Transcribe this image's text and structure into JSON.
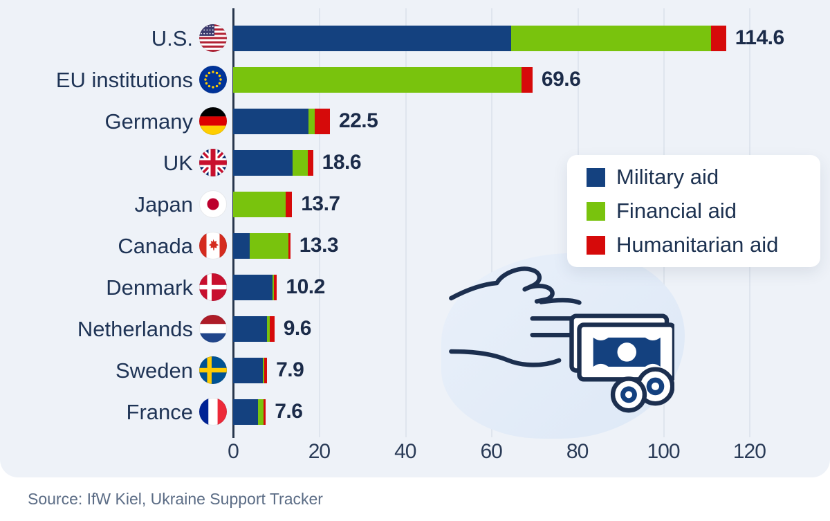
{
  "chart_data": {
    "type": "bar",
    "orientation": "horizontal",
    "stacked": true,
    "categories": [
      "U.S.",
      "EU institutions",
      "Germany",
      "UK",
      "Japan",
      "Canada",
      "Denmark",
      "Netherlands",
      "Sweden",
      "France"
    ],
    "flags": [
      "us",
      "eu",
      "de",
      "uk",
      "jp",
      "ca",
      "dk",
      "nl",
      "se",
      "fr"
    ],
    "series": [
      {
        "name": "Military aid",
        "color": "#14417f",
        "values": [
          64.6,
          0,
          17.5,
          13.8,
          0,
          3.9,
          9.2,
          7.8,
          6.9,
          5.8
        ]
      },
      {
        "name": "Financial aid",
        "color": "#79c30d",
        "values": [
          46.5,
          67.0,
          1.5,
          3.6,
          12.2,
          8.9,
          0.3,
          0.7,
          0.3,
          1.2
        ]
      },
      {
        "name": "Humanitarian aid",
        "color": "#d60a0a",
        "values": [
          3.5,
          2.6,
          3.5,
          1.2,
          1.5,
          0.5,
          0.7,
          1.1,
          0.7,
          0.6
        ]
      }
    ],
    "totals": [
      "114.6",
      "69.6",
      "22.5",
      "18.6",
      "13.7",
      "13.3",
      "10.2",
      "9.6",
      "7.9",
      "7.6"
    ],
    "xticks": [
      0,
      20,
      40,
      60,
      80,
      100,
      120
    ],
    "xlim": [
      0,
      128
    ],
    "grid": true,
    "legend_position": "right-center card"
  },
  "legend": {
    "items": [
      {
        "label": "Military aid",
        "color": "#14417f"
      },
      {
        "label": "Financial aid",
        "color": "#79c30d"
      },
      {
        "label": "Humanitarian aid",
        "color": "#d60a0a"
      }
    ]
  },
  "icon": {
    "name": "giving-hand-money-icon",
    "color": "#1c2f4f"
  },
  "source": {
    "text": "Source: IfW Kiel, Ukraine Support Tracker"
  },
  "colors": {
    "panel_background": "#eef2f8",
    "grid_line": "#dfe5ee",
    "axis_line": "#27364c",
    "label_text": "#1e3355",
    "value_text": "#1b2b49",
    "tick_text": "#2a3b57",
    "source_text": "#5b6c85",
    "legend_card": "#ffffff",
    "blob": "#dde8f6"
  }
}
